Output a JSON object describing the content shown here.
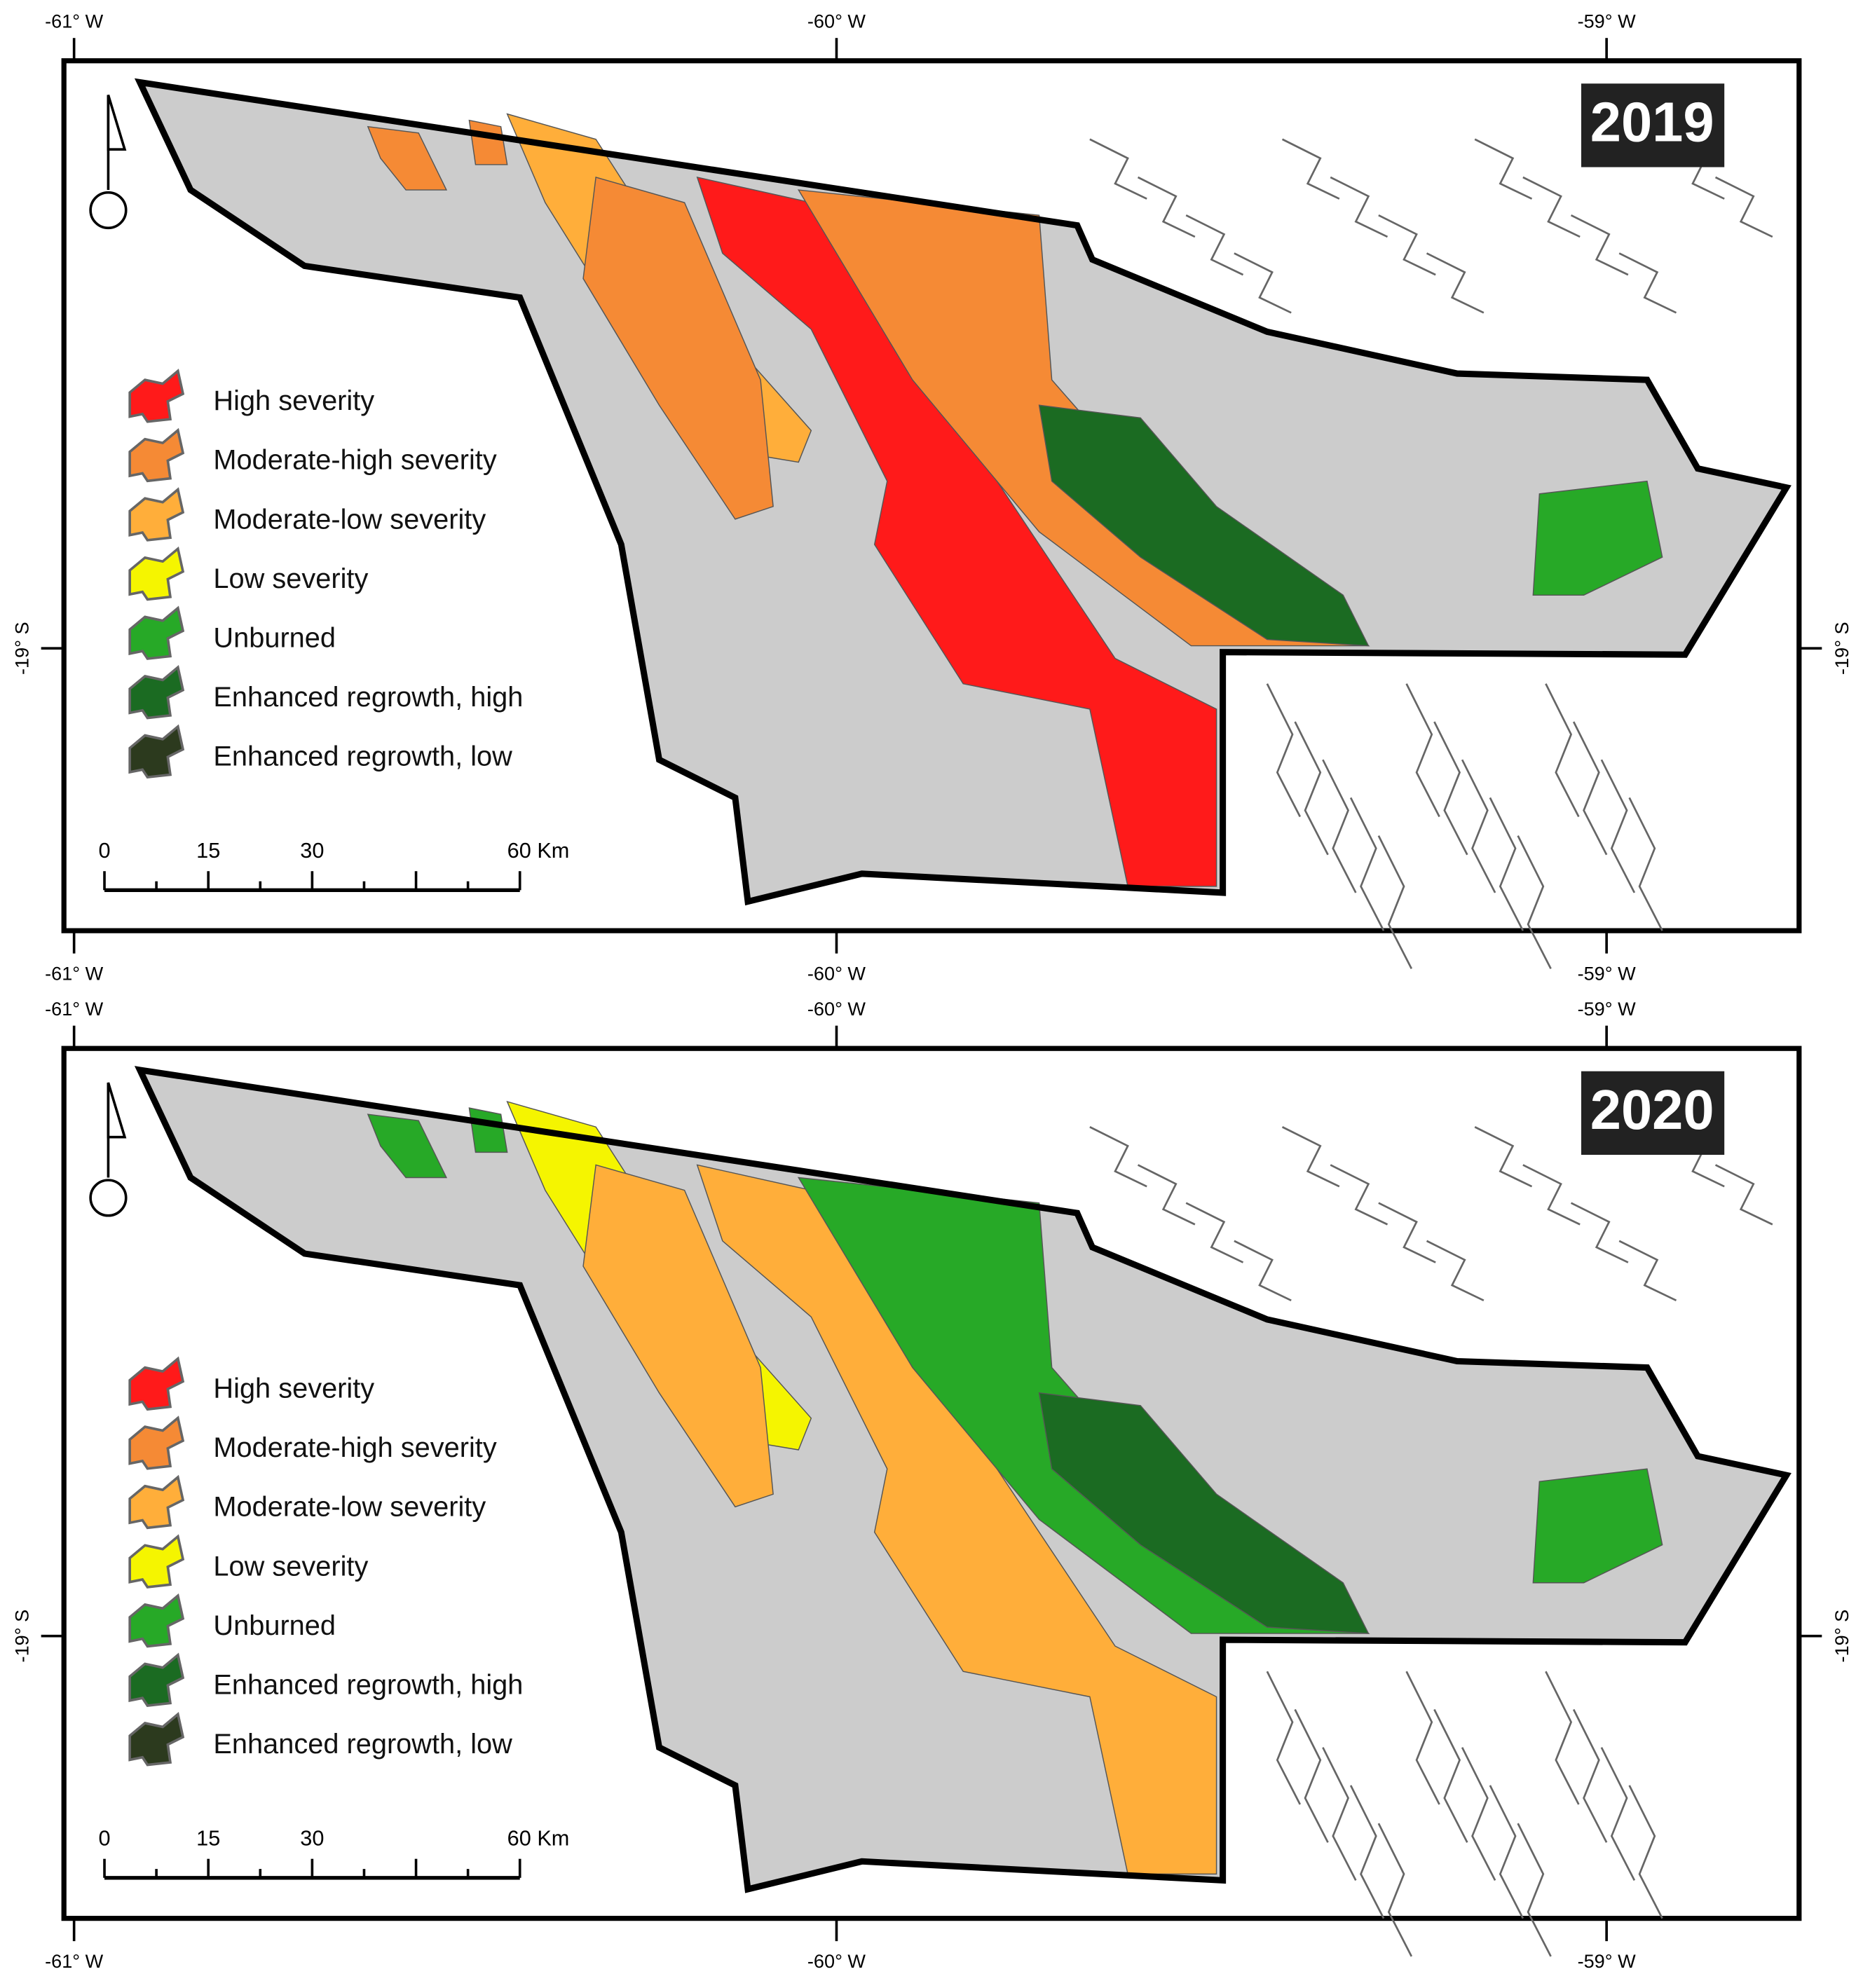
{
  "panels": [
    {
      "year": "2019"
    },
    {
      "year": "2020"
    }
  ],
  "legend": [
    {
      "label": "High severity",
      "color": "#ff1a1a"
    },
    {
      "label": "Moderate-high severity",
      "color": "#f58a35"
    },
    {
      "label": "Moderate-low severity",
      "color": "#ffae3a"
    },
    {
      "label": "Low severity",
      "color": "#f5f500"
    },
    {
      "label": "Unburned",
      "color": "#27a927"
    },
    {
      "label": "Enhanced regrowth, high",
      "color": "#1b6b22"
    },
    {
      "label": "Enhanced regrowth, low",
      "color": "#2c3a1e"
    }
  ],
  "scale_labels": [
    "0",
    "15",
    "30",
    "60 Km"
  ],
  "lon_labels": [
    "-61° W",
    "-60° W",
    "-59° W"
  ],
  "lat_label": "-19° S"
}
